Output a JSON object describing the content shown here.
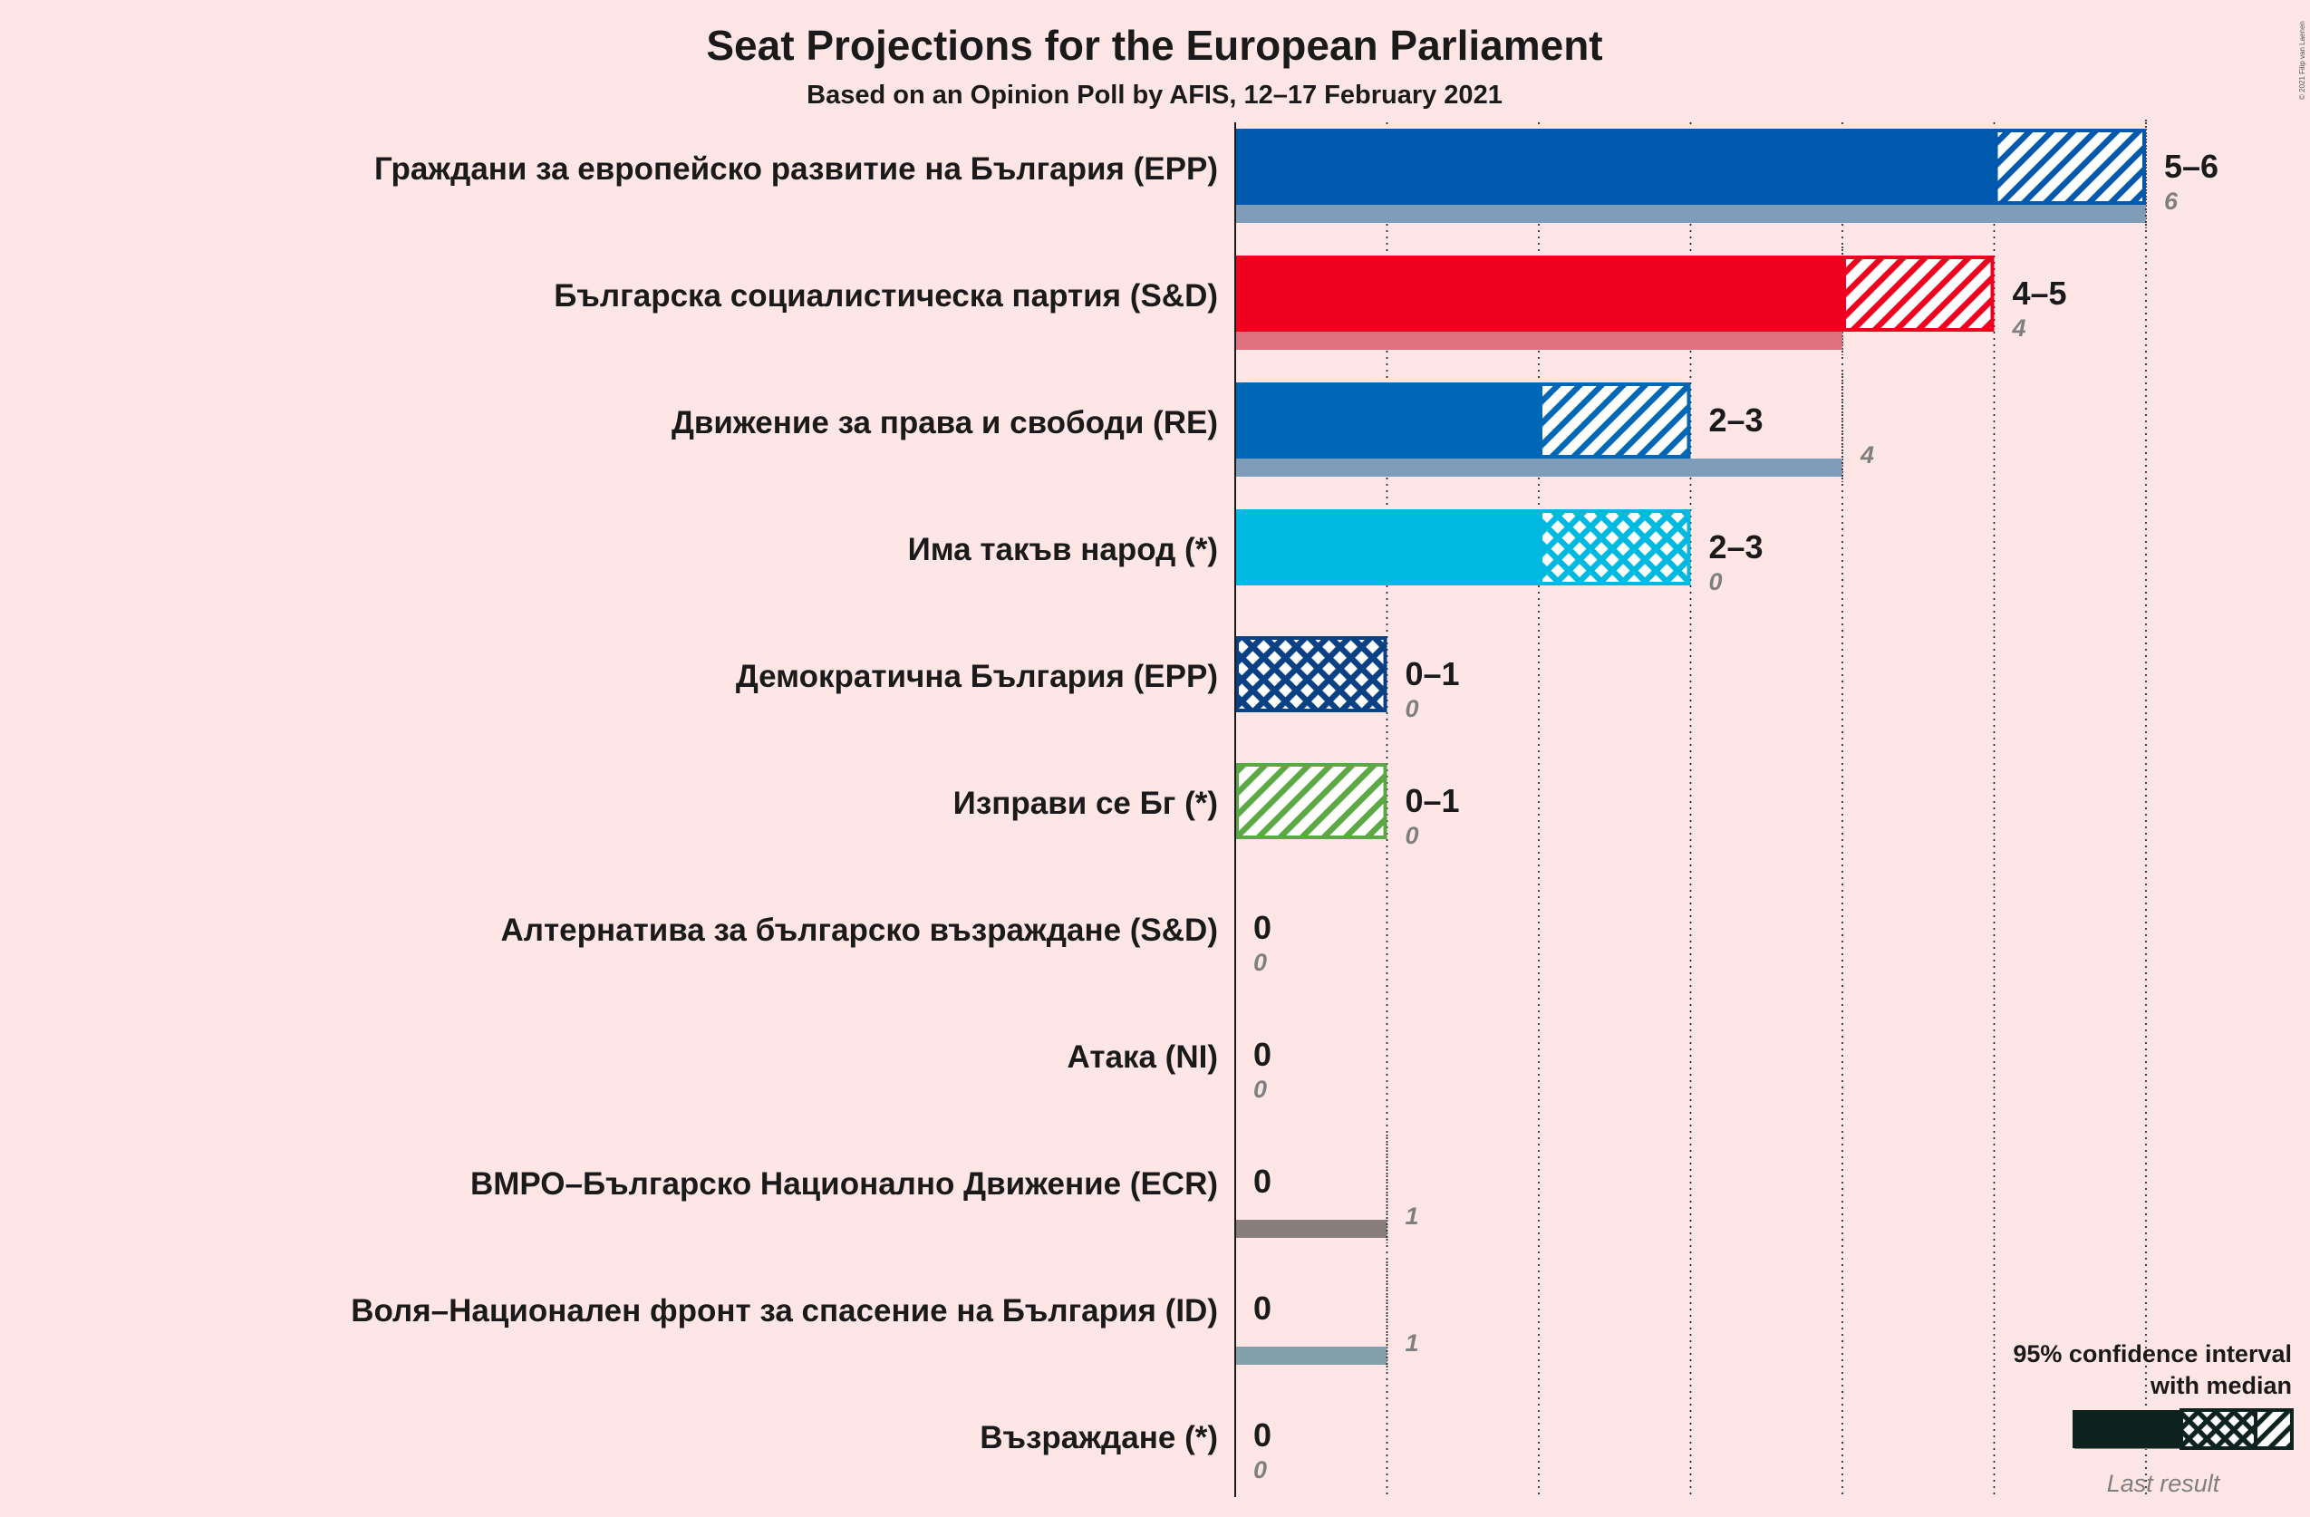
{
  "chart_data": {
    "type": "bar",
    "orientation": "horizontal",
    "title": "Seat Projections for the European Parliament",
    "subtitle": "Based on an Opinion Poll by AFIS, 12–17 February 2021",
    "credit": "© 2021 Filip van Laenen",
    "xlim": [
      0,
      6
    ],
    "grid": "dotted vertical lines at each seat",
    "legend_position": "bottom-right",
    "legend": {
      "ci_label_line1": "95% confidence interval",
      "ci_label_line2": "with median",
      "last_label": "Last result"
    },
    "series": [
      {
        "party": "Граждани за европейско развитие на България (EPP)",
        "low": 5,
        "median": 5,
        "high": 6,
        "range_label": "5–6",
        "last": 6,
        "last_label": "6",
        "color": "#0059AC",
        "last_color": "#7F9CB9",
        "pattern": "hatch"
      },
      {
        "party": "Българска социалистическа партия (S&D)",
        "low": 4,
        "median": 4,
        "high": 5,
        "range_label": "4–5",
        "last": 4,
        "last_label": "4",
        "color": "#EF001E",
        "last_color": "#E0707E",
        "pattern": "hatch"
      },
      {
        "party": "Движение за права и свободи (RE)",
        "low": 2,
        "median": 2,
        "high": 3,
        "range_label": "2–3",
        "last": 4,
        "last_label": "4",
        "color": "#0067B6",
        "last_color": "#7F9CB9",
        "pattern": "hatch"
      },
      {
        "party": "Има такъв народ (*)",
        "low": 2,
        "median": 3,
        "high": 3,
        "range_label": "2–3",
        "last": 0,
        "last_label": "0",
        "color": "#00B9E0",
        "last_color": "#7FC9DB",
        "pattern": "cross"
      },
      {
        "party": "Демократична България (EPP)",
        "low": 0,
        "median": 1,
        "high": 1,
        "range_label": "0–1",
        "last": 0,
        "last_label": "0",
        "color": "#0A4185",
        "last_color": "#7F9CB9",
        "pattern": "cross"
      },
      {
        "party": "Изправи се Бг (*)",
        "low": 0,
        "median": 0,
        "high": 1,
        "range_label": "0–1",
        "last": 0,
        "last_label": "0",
        "color": "#5CA845",
        "last_color": "#9CC48F",
        "pattern": "hatch"
      },
      {
        "party": "Алтернатива за българско възраждане (S&D)",
        "low": 0,
        "median": 0,
        "high": 0,
        "range_label": "0",
        "last": 0,
        "last_label": "0",
        "color": "#E3001A",
        "last_color": "#E0707E",
        "pattern": "none"
      },
      {
        "party": "Атака (NI)",
        "low": 0,
        "median": 0,
        "high": 0,
        "range_label": "0",
        "last": 0,
        "last_label": "0",
        "color": "#4F4F4F",
        "last_color": "#8A8080",
        "pattern": "none"
      },
      {
        "party": "ВМРО–Българско Национално Движение (ECR)",
        "low": 0,
        "median": 0,
        "high": 0,
        "range_label": "0",
        "last": 1,
        "last_label": "1",
        "color": "#4F4F4F",
        "last_color": "#877D7B",
        "pattern": "none"
      },
      {
        "party": "Воля–Национален фронт за спасение на България (ID)",
        "low": 0,
        "median": 0,
        "high": 0,
        "range_label": "0",
        "last": 1,
        "last_label": "1",
        "color": "#2B4A6A",
        "last_color": "#84A0AB",
        "pattern": "none"
      },
      {
        "party": "Възраждане (*)",
        "low": 0,
        "median": 0,
        "high": 0,
        "range_label": "0",
        "last": 0,
        "last_label": "0",
        "color": "#4F4F4F",
        "last_color": "#8A8080",
        "pattern": "none"
      }
    ]
  }
}
